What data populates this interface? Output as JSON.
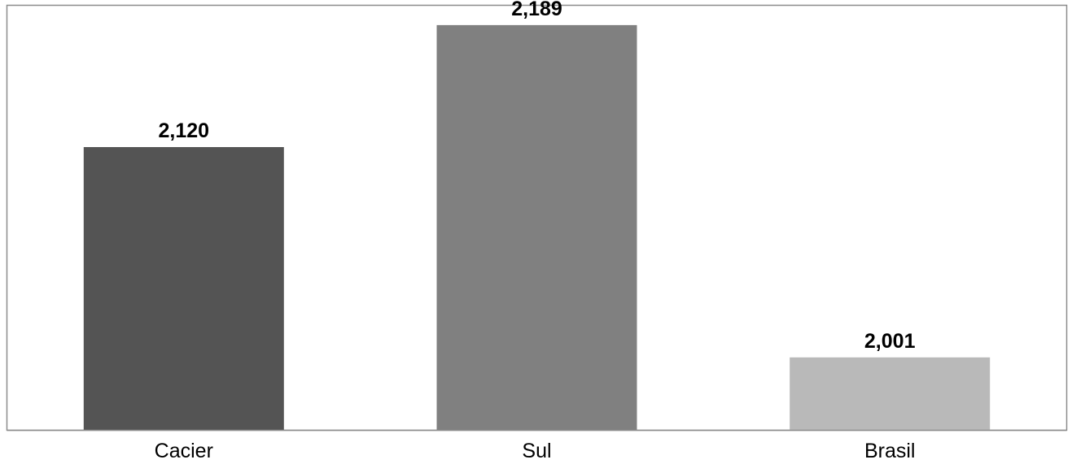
{
  "chart_data": {
    "type": "bar",
    "categories": [
      "Cacier",
      "Sul",
      "Brasil"
    ],
    "values": [
      2.12,
      2.189,
      2.001
    ],
    "data_labels": [
      "2,120",
      "2,189",
      "2,001"
    ],
    "colors": [
      "#545454",
      "#808080",
      "#b9b9b9"
    ],
    "title": "",
    "xlabel": "",
    "ylabel": "",
    "ylim": [
      1.96,
      2.2
    ],
    "grid": false,
    "legend": "none"
  }
}
